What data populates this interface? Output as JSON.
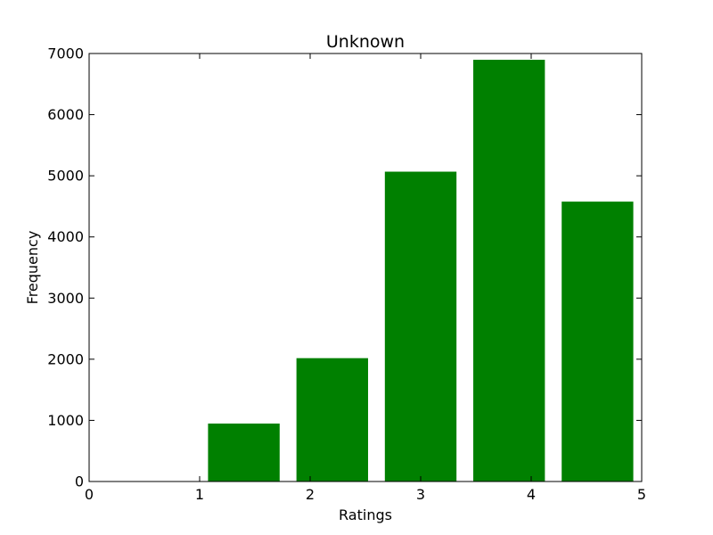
{
  "chart_data": {
    "type": "bar",
    "title": "Unknown",
    "xlabel": "Ratings",
    "ylabel": "Frequency",
    "xlim": [
      0,
      5
    ],
    "ylim": [
      0,
      7000
    ],
    "xticks": [
      "0",
      "1",
      "2",
      "3",
      "4",
      "5"
    ],
    "yticks": [
      "0",
      "1000",
      "2000",
      "3000",
      "4000",
      "5000",
      "6000",
      "7000"
    ],
    "bars": [
      {
        "x_start": 1.08,
        "x_end": 1.72,
        "value": 940
      },
      {
        "x_start": 1.88,
        "x_end": 2.52,
        "value": 2010
      },
      {
        "x_start": 2.68,
        "x_end": 3.32,
        "value": 5060
      },
      {
        "x_start": 3.48,
        "x_end": 4.12,
        "value": 6890
      },
      {
        "x_start": 4.28,
        "x_end": 4.92,
        "value": 4570
      }
    ],
    "bar_color": "#008000",
    "grid": false,
    "legend": "none"
  }
}
